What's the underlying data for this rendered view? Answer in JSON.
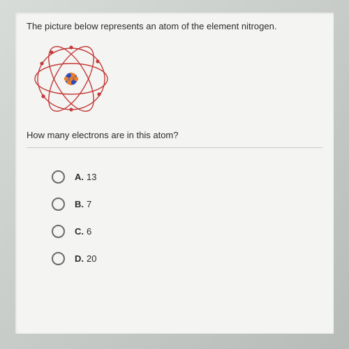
{
  "question": {
    "intro_text": "The picture below represents an atom of the element nitrogen.",
    "prompt_text": "How many electrons are in this atom?"
  },
  "atom": {
    "width": 120,
    "height": 120,
    "orbit_color": "#c43a3a",
    "orbit_stroke_width": 1.4,
    "electron_color": "#c43a3a",
    "electron_radius": 2.6,
    "nucleus_proton_color": "#e87f2e",
    "nucleus_neutron_color": "#2a4bbd",
    "nucleus_particle_radius": 3.2,
    "background": "transparent"
  },
  "options": [
    {
      "letter": "A.",
      "value": "13"
    },
    {
      "letter": "B.",
      "value": "7"
    },
    {
      "letter": "C.",
      "value": "6"
    },
    {
      "letter": "D.",
      "value": "20"
    }
  ],
  "styling": {
    "text_color": "#2a2a2a",
    "text_fontsize": 13,
    "radio_border_color": "#6a6a6a",
    "content_background": "#f4f5f2",
    "outer_background": "#d0d4d0"
  }
}
